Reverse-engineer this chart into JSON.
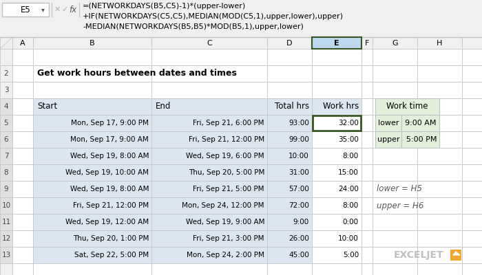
{
  "formula_bar_cell": "E5",
  "formula_line1": "=(NETWORKDAYS(B5,C5)-1)*(upper-lower)",
  "formula_line2": "+IF(NETWORKDAYS(C5,C5),MEDIAN(MOD(C5,1),upper,lower),upper)",
  "formula_line3": "-MEDIAN(NETWORKDAYS(B5,B5)*MOD(B5,1),upper,lower)",
  "title": "Get work hours between dates and times",
  "rows": [
    [
      "Mon, Sep 17, 9:00 PM",
      "Fri, Sep 21, 6:00 PM",
      "93:00",
      "32:00"
    ],
    [
      "Mon, Sep 17, 9:00 AM",
      "Fri, Sep 21, 12:00 PM",
      "99:00",
      "35:00"
    ],
    [
      "Wed, Sep 19, 8:00 AM",
      "Wed, Sep 19, 6:00 PM",
      "10:00",
      "8:00"
    ],
    [
      "Wed, Sep 19, 10:00 AM",
      "Thu, Sep 20, 5:00 PM",
      "31:00",
      "15:00"
    ],
    [
      "Wed, Sep 19, 8:00 AM",
      "Fri, Sep 21, 5:00 PM",
      "57:00",
      "24:00"
    ],
    [
      "Fri, Sep 21, 12:00 PM",
      "Mon, Sep 24, 12:00 PM",
      "72:00",
      "8:00"
    ],
    [
      "Wed, Sep 19, 12:00 AM",
      "Wed, Sep 19, 9:00 AM",
      "9:00",
      "0:00"
    ],
    [
      "Thu, Sep 20, 1:00 PM",
      "Fri, Sep 21, 3:00 PM",
      "26:00",
      "10:00"
    ],
    [
      "Sat, Sep 22, 5:00 PM",
      "Mon, Sep 24, 2:00 PM",
      "45:00",
      "5:00"
    ]
  ],
  "row_numbers": [
    "5",
    "6",
    "7",
    "8",
    "9",
    "10",
    "11",
    "12",
    "13"
  ],
  "side_table_header": "Work time",
  "side_labels": [
    "lower",
    "upper"
  ],
  "side_values": [
    "9:00 AM",
    "5:00 PM"
  ],
  "side_notes": [
    "lower = H5",
    "upper = H6"
  ],
  "bg_gray": "#f0f0f0",
  "white": "#ffffff",
  "cell_blue": "#dce6f1",
  "col_e_hdr": "#bdd7ee",
  "side_green": "#e2efda",
  "grid": "#c0c0c0",
  "sel_border": "#375623",
  "logo_orange": "#f0a830",
  "logo_gray": "#c0c0c0",
  "note_color": "#595959"
}
